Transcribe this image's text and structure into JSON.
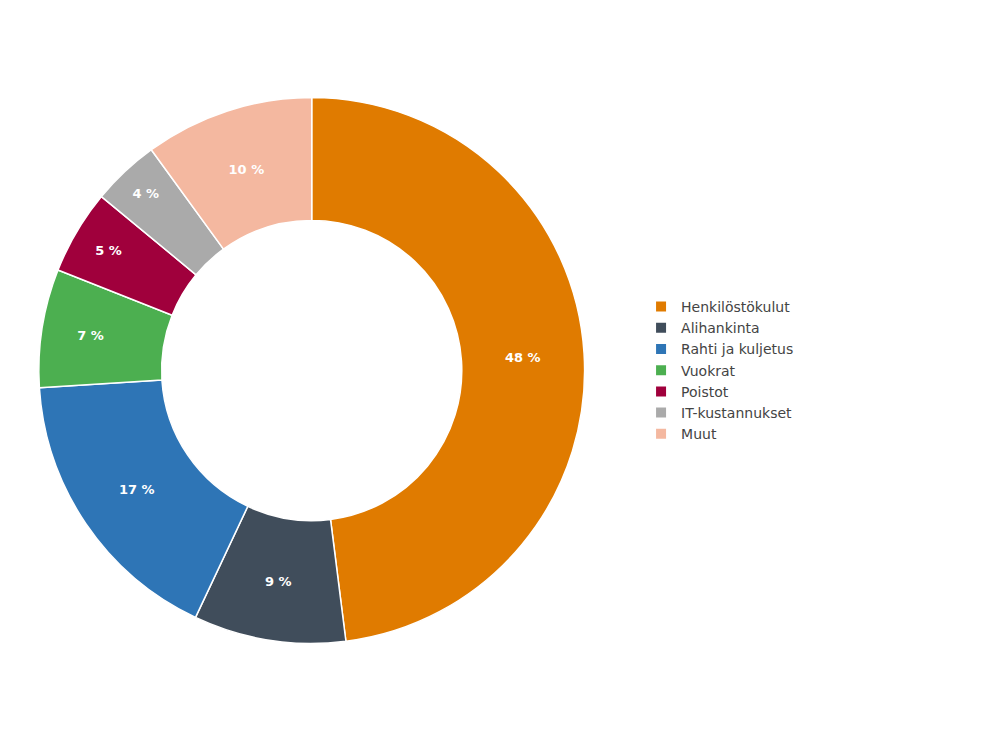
{
  "chart_data": {
    "type": "pie",
    "categories": [
      "Henkilöstökulut",
      "Alihankinta",
      "Rahti ja kuljetus",
      "Vuokrat",
      "Poistot",
      "IT-kustannukset",
      "Muut"
    ],
    "values": [
      48,
      9,
      17,
      7,
      5,
      4,
      10
    ],
    "value_labels": [
      "48 %",
      "9 %",
      "17 %",
      "7 %",
      "5 %",
      "4 %",
      "10 %"
    ],
    "colors": [
      "#E07B00",
      "#404D5B",
      "#2E75B6",
      "#4CAF50",
      "#A0003C",
      "#AAAAAA",
      "#F4B8A0"
    ],
    "data_labels": true,
    "legend": "right"
  }
}
